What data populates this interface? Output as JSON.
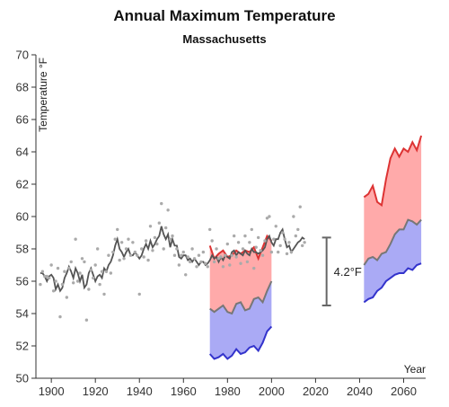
{
  "chart_data": {
    "type": "line",
    "title": "Annual Maximum Temperature",
    "subtitle": "Massachusetts",
    "ylabel": "Temperature °F",
    "xlabel": "Year",
    "xlim": [
      1893,
      2070
    ],
    "ylim": [
      50,
      70
    ],
    "x_ticks": [
      1900,
      1920,
      1940,
      1960,
      1980,
      2000,
      2020,
      2040,
      2060
    ],
    "y_ticks": [
      50,
      52,
      54,
      56,
      58,
      60,
      62,
      64,
      66,
      68,
      70
    ],
    "colors": {
      "observed_line": "#555555",
      "observed_points": "#aaaaaa",
      "high_line": "#dd3333",
      "high_band": "#ffaaaa",
      "low_line": "#3333cc",
      "low_band": "#aaaaf5",
      "median_line": "#777777",
      "bracket": "#666666"
    },
    "observed_points": [
      [
        1895,
        55.8
      ],
      [
        1896,
        56.6
      ],
      [
        1897,
        56.3
      ],
      [
        1898,
        56.3
      ],
      [
        1899,
        56.2
      ],
      [
        1900,
        57.0
      ],
      [
        1901,
        55.4
      ],
      [
        1902,
        56.0
      ],
      [
        1903,
        56.8
      ],
      [
        1904,
        53.8
      ],
      [
        1905,
        55.8
      ],
      [
        1906,
        56.6
      ],
      [
        1907,
        55.0
      ],
      [
        1908,
        56.8
      ],
      [
        1909,
        57.2
      ],
      [
        1910,
        55.9
      ],
      [
        1911,
        58.6
      ],
      [
        1912,
        56.0
      ],
      [
        1913,
        56.5
      ],
      [
        1914,
        57.4
      ],
      [
        1915,
        57.2
      ],
      [
        1916,
        53.6
      ],
      [
        1917,
        55.5
      ],
      [
        1918,
        56.7
      ],
      [
        1919,
        56.2
      ],
      [
        1920,
        57.0
      ],
      [
        1921,
        58.0
      ],
      [
        1922,
        55.8
      ],
      [
        1923,
        56.6
      ],
      [
        1924,
        55.2
      ],
      [
        1925,
        56.6
      ],
      [
        1926,
        57.6
      ],
      [
        1927,
        56.5
      ],
      [
        1928,
        57.8
      ],
      [
        1929,
        58.6
      ],
      [
        1930,
        59.2
      ],
      [
        1931,
        57.3
      ],
      [
        1932,
        58.4
      ],
      [
        1933,
        57.4
      ],
      [
        1934,
        58.0
      ],
      [
        1935,
        58.6
      ],
      [
        1936,
        57.6
      ],
      [
        1937,
        58.4
      ],
      [
        1938,
        57.8
      ],
      [
        1939,
        57.6
      ],
      [
        1940,
        55.2
      ],
      [
        1941,
        58.0
      ],
      [
        1942,
        57.5
      ],
      [
        1943,
        58.5
      ],
      [
        1944,
        57.3
      ],
      [
        1945,
        59.4
      ],
      [
        1946,
        57.9
      ],
      [
        1947,
        58.7
      ],
      [
        1948,
        58.3
      ],
      [
        1949,
        59.6
      ],
      [
        1950,
        60.8
      ],
      [
        1951,
        58.0
      ],
      [
        1952,
        59.3
      ],
      [
        1953,
        60.4
      ],
      [
        1954,
        58.6
      ],
      [
        1955,
        58.8
      ],
      [
        1956,
        57.6
      ],
      [
        1957,
        58.0
      ],
      [
        1958,
        57.0
      ],
      [
        1959,
        57.6
      ],
      [
        1960,
        57.8
      ],
      [
        1961,
        56.4
      ],
      [
        1962,
        57.5
      ],
      [
        1963,
        57.2
      ],
      [
        1964,
        58.0
      ],
      [
        1965,
        57.4
      ],
      [
        1966,
        56.9
      ],
      [
        1967,
        57.6
      ],
      [
        1968,
        57.2
      ],
      [
        1969,
        57.8
      ],
      [
        1970,
        57.1
      ],
      [
        1971,
        56.9
      ],
      [
        1972,
        59.2
      ],
      [
        1973,
        58.5
      ],
      [
        1974,
        57.2
      ],
      [
        1975,
        58.0
      ],
      [
        1976,
        57.4
      ],
      [
        1977,
        57.5
      ],
      [
        1978,
        56.9
      ],
      [
        1979,
        57.6
      ],
      [
        1980,
        58.3
      ],
      [
        1981,
        57.0
      ],
      [
        1982,
        57.6
      ],
      [
        1983,
        58.8
      ],
      [
        1984,
        57.5
      ],
      [
        1985,
        58.4
      ],
      [
        1986,
        57.1
      ],
      [
        1987,
        58.0
      ],
      [
        1988,
        58.8
      ],
      [
        1989,
        57.2
      ],
      [
        1990,
        58.4
      ],
      [
        1991,
        59.2
      ],
      [
        1992,
        56.8
      ],
      [
        1993,
        58.1
      ],
      [
        1994,
        58.7
      ],
      [
        1995,
        57.9
      ],
      [
        1996,
        57.6
      ],
      [
        1997,
        58.5
      ],
      [
        1998,
        59.9
      ],
      [
        1999,
        60.0
      ],
      [
        2000,
        57.8
      ],
      [
        2001,
        58.6
      ],
      [
        2002,
        59.4
      ],
      [
        2003,
        57.8
      ],
      [
        2004,
        58.2
      ],
      [
        2005,
        59.0
      ],
      [
        2006,
        58.6
      ],
      [
        2007,
        57.7
      ],
      [
        2008,
        58.4
      ],
      [
        2009,
        57.8
      ],
      [
        2010,
        60.0
      ],
      [
        2011,
        58.8
      ],
      [
        2012,
        59.2
      ],
      [
        2013,
        60.6
      ],
      [
        2014,
        58.2
      ],
      [
        2015,
        58.4
      ]
    ],
    "observed_line": [
      [
        1895,
        56.5
      ],
      [
        1896,
        56.5
      ],
      [
        1897,
        56.3
      ],
      [
        1898,
        56.0
      ],
      [
        1899,
        56.3
      ],
      [
        1900,
        56.4
      ],
      [
        1901,
        56.2
      ],
      [
        1902,
        55.5
      ],
      [
        1903,
        55.8
      ],
      [
        1904,
        55.4
      ],
      [
        1905,
        55.6
      ],
      [
        1906,
        56.2
      ],
      [
        1907,
        56.5
      ],
      [
        1908,
        56.9
      ],
      [
        1909,
        56.6
      ],
      [
        1910,
        56.2
      ],
      [
        1911,
        56.8
      ],
      [
        1912,
        56.5
      ],
      [
        1913,
        56.0
      ],
      [
        1914,
        56.4
      ],
      [
        1915,
        55.6
      ],
      [
        1916,
        55.8
      ],
      [
        1917,
        56.5
      ],
      [
        1918,
        56.8
      ],
      [
        1919,
        56.4
      ],
      [
        1920,
        56.0
      ],
      [
        1921,
        56.3
      ],
      [
        1922,
        56.4
      ],
      [
        1923,
        56.2
      ],
      [
        1924,
        56.8
      ],
      [
        1925,
        56.6
      ],
      [
        1926,
        57.0
      ],
      [
        1927,
        57.2
      ],
      [
        1928,
        57.6
      ],
      [
        1929,
        58.2
      ],
      [
        1930,
        58.6
      ],
      [
        1931,
        58.0
      ],
      [
        1932,
        57.8
      ],
      [
        1933,
        57.5
      ],
      [
        1934,
        57.8
      ],
      [
        1935,
        58.0
      ],
      [
        1936,
        57.6
      ],
      [
        1937,
        57.6
      ],
      [
        1938,
        57.8
      ],
      [
        1939,
        57.6
      ],
      [
        1940,
        57.4
      ],
      [
        1941,
        57.6
      ],
      [
        1942,
        58.0
      ],
      [
        1943,
        58.3
      ],
      [
        1944,
        58.0
      ],
      [
        1945,
        58.5
      ],
      [
        1946,
        58.1
      ],
      [
        1947,
        58.3
      ],
      [
        1948,
        58.6
      ],
      [
        1949,
        58.8
      ],
      [
        1950,
        59.4
      ],
      [
        1951,
        58.9
      ],
      [
        1952,
        58.6
      ],
      [
        1953,
        58.9
      ],
      [
        1954,
        58.1
      ],
      [
        1955,
        58.6
      ],
      [
        1956,
        58.2
      ],
      [
        1957,
        58.2
      ],
      [
        1958,
        57.5
      ],
      [
        1959,
        57.4
      ],
      [
        1960,
        57.6
      ],
      [
        1961,
        57.6
      ],
      [
        1962,
        57.3
      ],
      [
        1963,
        57.4
      ],
      [
        1964,
        57.2
      ],
      [
        1965,
        57.4
      ],
      [
        1966,
        57.2
      ],
      [
        1967,
        57.0
      ],
      [
        1968,
        57.2
      ],
      [
        1969,
        57.2
      ],
      [
        1970,
        57.0
      ],
      [
        1971,
        57.1
      ],
      [
        1972,
        57.3
      ],
      [
        1973,
        57.6
      ],
      [
        1974,
        57.4
      ],
      [
        1975,
        57.5
      ],
      [
        1976,
        57.2
      ],
      [
        1977,
        57.5
      ],
      [
        1978,
        57.3
      ],
      [
        1979,
        57.6
      ],
      [
        1980,
        57.5
      ],
      [
        1981,
        57.4
      ],
      [
        1982,
        57.8
      ],
      [
        1983,
        57.9
      ],
      [
        1984,
        57.6
      ],
      [
        1985,
        57.8
      ],
      [
        1986,
        57.7
      ],
      [
        1987,
        57.6
      ],
      [
        1988,
        57.9
      ],
      [
        1989,
        57.7
      ],
      [
        1990,
        57.6
      ],
      [
        1991,
        58.0
      ],
      [
        1992,
        57.8
      ],
      [
        1993,
        57.8
      ],
      [
        1994,
        57.7
      ],
      [
        1995,
        57.8
      ],
      [
        1996,
        57.9
      ],
      [
        1997,
        58.1
      ],
      [
        1998,
        58.6
      ],
      [
        1999,
        58.8
      ],
      [
        2000,
        58.4
      ],
      [
        2001,
        58.2
      ],
      [
        2002,
        58.6
      ],
      [
        2003,
        58.6
      ],
      [
        2004,
        59.0
      ],
      [
        2005,
        59.2
      ],
      [
        2006,
        58.6
      ],
      [
        2007,
        58.1
      ],
      [
        2008,
        58.2
      ],
      [
        2009,
        57.8
      ],
      [
        2010,
        58.0
      ],
      [
        2011,
        58.2
      ],
      [
        2012,
        58.4
      ],
      [
        2013,
        58.5
      ],
      [
        2014,
        58.7
      ],
      [
        2015,
        58.6
      ]
    ],
    "hindcast": {
      "x": [
        1972,
        1974,
        1976,
        1978,
        1980,
        1982,
        1984,
        1986,
        1988,
        1990,
        1992,
        1994,
        1996,
        1998,
        2000
      ],
      "high": [
        58.2,
        57.4,
        57.7,
        57.9,
        57.5,
        57.6,
        57.9,
        57.7,
        57.9,
        57.8,
        58.1,
        57.4,
        58.1,
        58.8,
        58.5
      ],
      "median": [
        54.3,
        54.1,
        54.3,
        54.5,
        54.1,
        54.0,
        54.6,
        54.7,
        54.2,
        54.3,
        54.9,
        55.0,
        54.7,
        55.4,
        56.0
      ],
      "low": [
        51.5,
        51.2,
        51.3,
        51.5,
        51.2,
        51.4,
        51.8,
        51.5,
        51.6,
        51.9,
        52.0,
        51.7,
        52.2,
        52.9,
        53.2
      ]
    },
    "projection": {
      "x": [
        2042,
        2044,
        2046,
        2048,
        2050,
        2052,
        2054,
        2056,
        2058,
        2060,
        2062,
        2064,
        2066,
        2068
      ],
      "high": [
        61.2,
        61.4,
        61.9,
        60.9,
        60.7,
        62.3,
        63.6,
        64.2,
        63.7,
        64.2,
        64.0,
        64.6,
        64.1,
        65.0
      ],
      "median": [
        57.0,
        57.4,
        57.5,
        57.3,
        57.7,
        57.8,
        58.3,
        58.9,
        59.2,
        59.2,
        59.8,
        59.7,
        59.5,
        59.8
      ],
      "low": [
        54.7,
        54.9,
        55.0,
        55.4,
        55.6,
        56.0,
        56.2,
        56.4,
        56.5,
        56.5,
        56.8,
        56.7,
        57.0,
        57.1
      ]
    },
    "annotation": {
      "label": "4.2°F",
      "x": 2025,
      "y_top": 58.7,
      "y_bottom": 54.5
    }
  }
}
